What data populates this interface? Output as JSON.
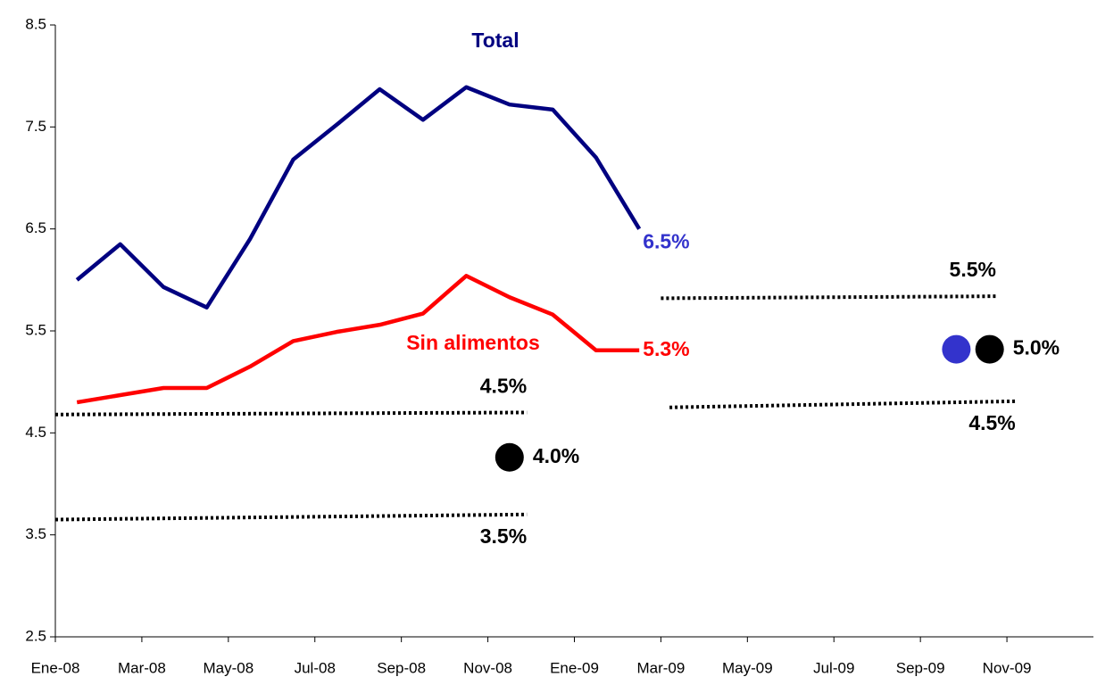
{
  "chart_data": {
    "type": "line",
    "categories": [
      "Ene-08",
      null,
      "Mar-08",
      null,
      "May-08",
      null,
      "Jul-08",
      null,
      "Sep-08",
      null,
      "Nov-08",
      null,
      "Ene-09",
      null,
      "Mar-09",
      null,
      "May-09",
      null,
      "Jul-09",
      null,
      "Sep-09",
      null,
      "Nov-09",
      null
    ],
    "ylim": [
      2.5,
      8.5
    ],
    "yticks": [
      2.5,
      3.5,
      4.5,
      5.5,
      6.5,
      7.5,
      8.5
    ],
    "series": [
      {
        "name": "Total",
        "color": "#000080",
        "values": [
          6.0,
          6.35,
          5.93,
          5.73,
          6.4,
          7.18,
          7.52,
          7.87,
          7.57,
          7.89,
          7.72,
          7.67,
          7.2,
          6.5,
          null,
          null,
          null,
          null,
          null,
          null,
          null,
          null,
          null,
          null
        ],
        "value_labels": [
          null,
          null,
          null,
          null,
          null,
          null,
          null,
          null,
          null,
          null,
          null,
          null,
          null,
          "6.5%",
          null,
          null,
          null,
          null,
          null,
          null,
          null,
          null,
          null,
          null
        ],
        "label_color": "#3333cc"
      },
      {
        "name": "Sin alimentos",
        "color": "#ff0000",
        "values": [
          4.8,
          4.87,
          4.94,
          4.94,
          5.15,
          5.4,
          5.49,
          5.56,
          5.67,
          6.04,
          5.83,
          5.66,
          5.31,
          5.31,
          null,
          null,
          null,
          null,
          null,
          null,
          null,
          null,
          null,
          null
        ],
        "value_labels": [
          null,
          null,
          null,
          null,
          null,
          null,
          null,
          null,
          null,
          null,
          null,
          null,
          null,
          "5.3%",
          null,
          null,
          null,
          null,
          null,
          null,
          null,
          null,
          null,
          null
        ],
        "label_color": "#ff0000"
      }
    ],
    "targets": [
      {
        "label": "4.5%",
        "label_side": "above",
        "x": [
          -0.5,
          10.4
        ],
        "values": [
          4.68,
          4.7
        ]
      },
      {
        "label": "3.5%",
        "label_side": "below",
        "x": [
          -0.5,
          10.4
        ],
        "values": [
          3.65,
          3.7
        ]
      },
      {
        "label": "5.5%",
        "label_side": "above",
        "x": [
          13.5,
          21.25
        ],
        "values": [
          5.82,
          5.84
        ]
      },
      {
        "label": "4.5%",
        "label_side": "below",
        "x": [
          13.7,
          21.7
        ],
        "values": [
          4.75,
          4.81
        ]
      }
    ],
    "forecasts": [
      {
        "label": "4.0%",
        "points": [
          {
            "x": 10.0,
            "value": 4.26,
            "color": "#000000"
          }
        ]
      },
      {
        "label": "5.0%",
        "points": [
          {
            "x": 20.33,
            "value": 5.32,
            "color": "#3333cc"
          },
          {
            "x": 21.1,
            "value": 5.32,
            "color": "#000000"
          }
        ]
      }
    ]
  }
}
